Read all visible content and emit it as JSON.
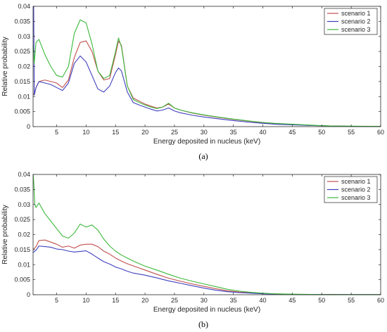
{
  "chart_data": [
    {
      "type": "line",
      "panel_label": "(a)",
      "xlabel": "Energy deposited in nucleus (keV)",
      "ylabel": "Relative probability",
      "xlim": [
        1,
        60
      ],
      "ylim": [
        0,
        0.04
      ],
      "xticks": [
        5,
        10,
        15,
        20,
        25,
        30,
        35,
        40,
        45,
        50,
        55,
        60
      ],
      "yticks": [
        0,
        0.005,
        0.01,
        0.015,
        0.02,
        0.025,
        0.03,
        0.035,
        0.04
      ],
      "yticklabels": [
        "0",
        "0.005",
        "0.01",
        "0.015",
        "0.02",
        "0.025",
        "0.03",
        "0.035",
        "0.04"
      ],
      "legend_position": "top-right",
      "series": [
        {
          "name": "scenario 1",
          "color": "#c0504d",
          "x": [
            1,
            1.2,
            1.5,
            2,
            3,
            4,
            5,
            6,
            7,
            8,
            9,
            10,
            11,
            12,
            13,
            14,
            15,
            15.5,
            16,
            17,
            18,
            19,
            20,
            21,
            22,
            23,
            24,
            25,
            26,
            28,
            30,
            32,
            35,
            38,
            40,
            42,
            45,
            48,
            50,
            52,
            55,
            58,
            60
          ],
          "y": [
            0.011,
            0.0105,
            0.013,
            0.015,
            0.0155,
            0.015,
            0.0145,
            0.013,
            0.0155,
            0.023,
            0.028,
            0.0285,
            0.025,
            0.0185,
            0.0155,
            0.016,
            0.024,
            0.0285,
            0.027,
            0.0135,
            0.0095,
            0.0085,
            0.0075,
            0.0068,
            0.0062,
            0.0065,
            0.0075,
            0.0062,
            0.0055,
            0.0045,
            0.0038,
            0.0032,
            0.0024,
            0.0017,
            0.0013,
            0.001,
            0.0007,
            0.0004,
            0.0003,
            0.0002,
            0.0001,
            5e-05,
            0.0001
          ]
        },
        {
          "name": "scenario 2",
          "color": "#3f3fbf",
          "x": [
            1,
            1.1,
            1.2,
            1.5,
            2,
            3,
            4,
            5,
            6,
            7,
            8,
            9,
            10,
            11,
            12,
            13,
            14,
            15,
            15.5,
            16,
            17,
            18,
            19,
            20,
            21,
            22,
            23,
            24,
            25,
            26,
            28,
            30,
            32,
            35,
            38,
            40,
            42,
            45,
            48,
            50,
            52,
            55,
            58,
            60
          ],
          "y": [
            0.04,
            0.04,
            0.0105,
            0.013,
            0.015,
            0.0145,
            0.014,
            0.013,
            0.012,
            0.0145,
            0.021,
            0.0235,
            0.0215,
            0.017,
            0.0125,
            0.0115,
            0.0135,
            0.018,
            0.0195,
            0.0185,
            0.0115,
            0.008,
            0.0072,
            0.0065,
            0.0058,
            0.0052,
            0.0055,
            0.0062,
            0.0052,
            0.0046,
            0.0038,
            0.0032,
            0.0027,
            0.002,
            0.0014,
            0.0011,
            0.0008,
            0.0006,
            0.0004,
            0.0003,
            0.0002,
            0.0001,
            5e-05,
            5e-05
          ]
        },
        {
          "name": "scenario 3",
          "color": "#3cb93c",
          "x": [
            1,
            1.2,
            1.5,
            2,
            3,
            4,
            5,
            6,
            7,
            8,
            9,
            10,
            11,
            12,
            13,
            14,
            15,
            15.5,
            16,
            17,
            18,
            19,
            20,
            21,
            22,
            23,
            24,
            25,
            26,
            28,
            30,
            32,
            35,
            38,
            40,
            42,
            45,
            48,
            50,
            52,
            55,
            58,
            60
          ],
          "y": [
            0.027,
            0.021,
            0.028,
            0.029,
            0.024,
            0.02,
            0.017,
            0.0165,
            0.02,
            0.031,
            0.0355,
            0.0345,
            0.0275,
            0.0185,
            0.016,
            0.017,
            0.025,
            0.0295,
            0.0265,
            0.0135,
            0.009,
            0.008,
            0.0072,
            0.0065,
            0.006,
            0.0065,
            0.0078,
            0.0062,
            0.0055,
            0.0046,
            0.0039,
            0.0033,
            0.0025,
            0.0018,
            0.0014,
            0.0011,
            0.0008,
            0.0005,
            0.0003,
            0.0002,
            0.00015,
            0.0001,
            0.0001
          ]
        }
      ]
    },
    {
      "type": "line",
      "panel_label": "(b)",
      "xlabel": "Energy deposited in nucleus (keV)",
      "ylabel": "Relative probability",
      "xlim": [
        1,
        60
      ],
      "ylim": [
        0,
        0.04
      ],
      "xticks": [
        5,
        10,
        15,
        20,
        25,
        30,
        35,
        40,
        45,
        50,
        55,
        60
      ],
      "yticks": [
        0,
        0.005,
        0.01,
        0.015,
        0.02,
        0.025,
        0.03,
        0.035,
        0.04
      ],
      "yticklabels": [
        "0",
        "0.005",
        "0.01",
        "0.015",
        "0.02",
        "0.025",
        "0.03",
        "0.035",
        "0.04"
      ],
      "legend_position": "top-right",
      "series": [
        {
          "name": "scenario 1",
          "color": "#c0504d",
          "x": [
            1,
            1.5,
            2,
            3,
            4,
            5,
            6,
            7,
            8,
            9,
            10,
            11,
            12,
            13,
            14,
            15,
            16,
            17,
            18,
            20,
            22,
            24,
            26,
            28,
            30,
            32,
            34,
            36,
            38,
            40,
            42,
            45,
            48,
            50,
            55,
            60
          ],
          "y": [
            0.015,
            0.016,
            0.018,
            0.0182,
            0.0175,
            0.0168,
            0.0158,
            0.0162,
            0.0155,
            0.0165,
            0.0168,
            0.0168,
            0.016,
            0.0145,
            0.0135,
            0.0122,
            0.0112,
            0.0103,
            0.0096,
            0.0082,
            0.0068,
            0.0055,
            0.0045,
            0.0036,
            0.0028,
            0.002,
            0.0013,
            0.0009,
            0.0006,
            0.0004,
            0.0003,
            0.0001,
            5e-05,
            0.0001,
            5e-05,
            5e-05
          ]
        },
        {
          "name": "scenario 2",
          "color": "#3f3fbf",
          "x": [
            1,
            1.5,
            2,
            3,
            4,
            5,
            6,
            7,
            8,
            9,
            10,
            11,
            12,
            13,
            14,
            15,
            16,
            17,
            18,
            20,
            22,
            24,
            26,
            28,
            30,
            32,
            34,
            36,
            38,
            40,
            42,
            45,
            48,
            50,
            55,
            60
          ],
          "y": [
            0.014,
            0.0148,
            0.0162,
            0.016,
            0.0158,
            0.0152,
            0.015,
            0.0145,
            0.0142,
            0.0144,
            0.0146,
            0.0135,
            0.0122,
            0.011,
            0.0102,
            0.0092,
            0.0086,
            0.0078,
            0.0072,
            0.0065,
            0.0056,
            0.0046,
            0.0038,
            0.003,
            0.0022,
            0.0015,
            0.001,
            0.0007,
            0.0005,
            0.0003,
            0.0002,
            0.0001,
            5e-05,
            5e-05,
            5e-05,
            5e-05
          ]
        },
        {
          "name": "scenario 3",
          "color": "#3cb93c",
          "x": [
            1,
            1.1,
            1.3,
            1.5,
            2,
            3,
            4,
            5,
            6,
            7,
            8,
            9,
            10,
            11,
            12,
            13,
            14,
            15,
            16,
            17,
            18,
            20,
            22,
            24,
            26,
            28,
            30,
            32,
            34,
            36,
            38,
            40,
            42,
            45,
            48,
            50,
            55,
            60
          ],
          "y": [
            0.04,
            0.038,
            0.03,
            0.029,
            0.0305,
            0.027,
            0.0245,
            0.022,
            0.0195,
            0.0188,
            0.0205,
            0.0235,
            0.0225,
            0.0232,
            0.0215,
            0.0185,
            0.0162,
            0.0145,
            0.0132,
            0.0122,
            0.0112,
            0.0095,
            0.0082,
            0.0068,
            0.0055,
            0.0045,
            0.0036,
            0.0027,
            0.0018,
            0.0012,
            0.0008,
            0.0005,
            0.0003,
            0.0002,
            0.0001,
            5e-05,
            5e-05,
            5e-05
          ]
        }
      ]
    }
  ]
}
